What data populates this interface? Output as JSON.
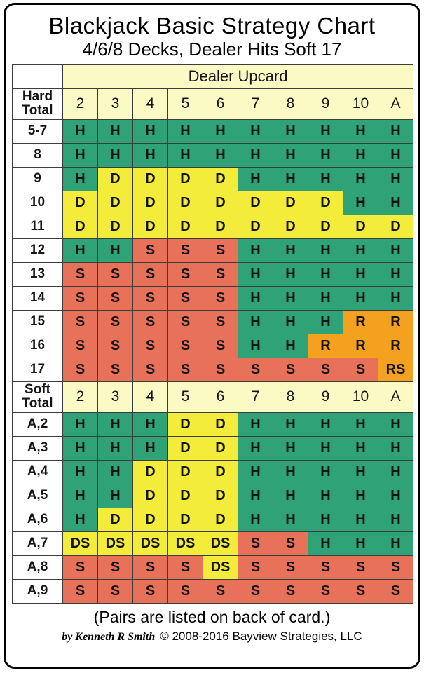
{
  "footer_note": "(Pairs are listed on back of card.)",
  "credit": {
    "author": "by Kenneth R Smith",
    "copyright": "© 2008-2016 Bayview Strategies, LLC"
  },
  "colors": {
    "header_bg": "#fbfac5",
    "grid_border": "#3c3c3c",
    "actions": {
      "H": "#2fa377",
      "D": "#f4ec3a",
      "S": "#e8715a",
      "R": "#f4a120",
      "DS": "#f4ec3a",
      "RS": "#f4a120"
    }
  },
  "chart_data": {
    "type": "table",
    "title": "Blackjack Basic Strategy Chart",
    "subtitle": "4/6/8 Decks, Dealer Hits Soft 17",
    "column_group_label": "Dealer Upcard",
    "columns": [
      "2",
      "3",
      "4",
      "5",
      "6",
      "7",
      "8",
      "9",
      "10",
      "A"
    ],
    "sections": [
      {
        "label": "Hard Total",
        "rows": [
          {
            "label": "5-7",
            "cells": [
              "H",
              "H",
              "H",
              "H",
              "H",
              "H",
              "H",
              "H",
              "H",
              "H"
            ]
          },
          {
            "label": "8",
            "cells": [
              "H",
              "H",
              "H",
              "H",
              "H",
              "H",
              "H",
              "H",
              "H",
              "H"
            ]
          },
          {
            "label": "9",
            "cells": [
              "H",
              "D",
              "D",
              "D",
              "D",
              "H",
              "H",
              "H",
              "H",
              "H"
            ]
          },
          {
            "label": "10",
            "cells": [
              "D",
              "D",
              "D",
              "D",
              "D",
              "D",
              "D",
              "D",
              "H",
              "H"
            ]
          },
          {
            "label": "11",
            "cells": [
              "D",
              "D",
              "D",
              "D",
              "D",
              "D",
              "D",
              "D",
              "D",
              "D"
            ]
          },
          {
            "label": "12",
            "cells": [
              "H",
              "H",
              "S",
              "S",
              "S",
              "H",
              "H",
              "H",
              "H",
              "H"
            ]
          },
          {
            "label": "13",
            "cells": [
              "S",
              "S",
              "S",
              "S",
              "S",
              "H",
              "H",
              "H",
              "H",
              "H"
            ]
          },
          {
            "label": "14",
            "cells": [
              "S",
              "S",
              "S",
              "S",
              "S",
              "H",
              "H",
              "H",
              "H",
              "H"
            ]
          },
          {
            "label": "15",
            "cells": [
              "S",
              "S",
              "S",
              "S",
              "S",
              "H",
              "H",
              "H",
              "R",
              "R"
            ]
          },
          {
            "label": "16",
            "cells": [
              "S",
              "S",
              "S",
              "S",
              "S",
              "H",
              "H",
              "R",
              "R",
              "R"
            ]
          },
          {
            "label": "17",
            "cells": [
              "S",
              "S",
              "S",
              "S",
              "S",
              "S",
              "S",
              "S",
              "S",
              "RS"
            ]
          }
        ]
      },
      {
        "label": "Soft Total",
        "rows": [
          {
            "label": "A,2",
            "cells": [
              "H",
              "H",
              "H",
              "D",
              "D",
              "H",
              "H",
              "H",
              "H",
              "H"
            ]
          },
          {
            "label": "A,3",
            "cells": [
              "H",
              "H",
              "H",
              "D",
              "D",
              "H",
              "H",
              "H",
              "H",
              "H"
            ]
          },
          {
            "label": "A,4",
            "cells": [
              "H",
              "H",
              "D",
              "D",
              "D",
              "H",
              "H",
              "H",
              "H",
              "H"
            ]
          },
          {
            "label": "A,5",
            "cells": [
              "H",
              "H",
              "D",
              "D",
              "D",
              "H",
              "H",
              "H",
              "H",
              "H"
            ]
          },
          {
            "label": "A,6",
            "cells": [
              "H",
              "D",
              "D",
              "D",
              "D",
              "H",
              "H",
              "H",
              "H",
              "H"
            ]
          },
          {
            "label": "A,7",
            "cells": [
              "DS",
              "DS",
              "DS",
              "DS",
              "DS",
              "S",
              "S",
              "H",
              "H",
              "H"
            ]
          },
          {
            "label": "A,8",
            "cells": [
              "S",
              "S",
              "S",
              "S",
              "DS",
              "S",
              "S",
              "S",
              "S",
              "S"
            ]
          },
          {
            "label": "A,9",
            "cells": [
              "S",
              "S",
              "S",
              "S",
              "S",
              "S",
              "S",
              "S",
              "S",
              "S"
            ]
          }
        ]
      }
    ]
  }
}
